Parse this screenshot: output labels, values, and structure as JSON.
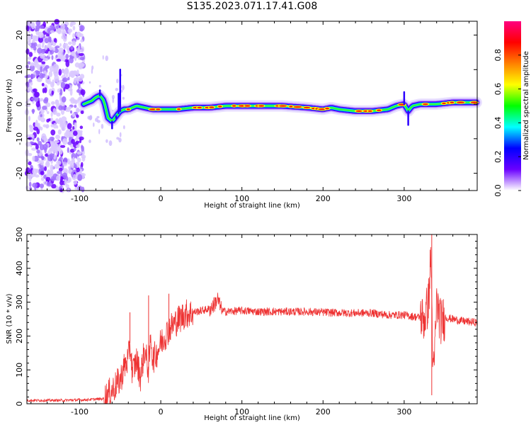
{
  "title": "S135.2023.071.17.41.G08",
  "chart_data": [
    {
      "type": "heatmap",
      "title": "S135.2023.071.17.41.G08",
      "xlabel": "Height of straight line (km)",
      "ylabel": "Frequency (Hz)",
      "xlim": [
        -165,
        390
      ],
      "ylim": [
        -25,
        24
      ],
      "xticks": [
        -100,
        0,
        100,
        200,
        300
      ],
      "yticks": [
        -20,
        -10,
        0,
        10,
        20
      ],
      "colorbar": {
        "label": "Normalized spectral amplitude",
        "range": [
          0,
          1
        ],
        "ticks": [
          "0.0",
          "0.2",
          "0.4",
          "0.6",
          "0.8"
        ],
        "colors": [
          "#ffffff",
          "#6a00ff",
          "#0000ff",
          "#00ffff",
          "#00ff00",
          "#ffff00",
          "#ff8000",
          "#ff0000",
          "#ff0080"
        ]
      },
      "ridge": {
        "name": "peak frequency",
        "x": [
          -95,
          -85,
          -80,
          -75,
          -70,
          -65,
          -60,
          -55,
          -50,
          -45,
          -40,
          -30,
          -20,
          -10,
          0,
          20,
          40,
          60,
          80,
          100,
          120,
          150,
          180,
          200,
          210,
          220,
          240,
          260,
          280,
          290,
          300,
          305,
          310,
          320,
          340,
          360,
          380,
          390
        ],
        "y": [
          0.0,
          1.0,
          2.0,
          2.5,
          1.0,
          -4.0,
          -5.0,
          -3.5,
          -2.0,
          -1.5,
          -1.5,
          -0.5,
          -1.0,
          -1.5,
          -1.5,
          -1.5,
          -1.0,
          -1.0,
          -0.5,
          -0.5,
          -0.5,
          -0.5,
          -1.0,
          -1.5,
          -1.0,
          -1.5,
          -2.0,
          -2.0,
          -1.5,
          -0.5,
          0.0,
          -2.0,
          -0.5,
          0.0,
          0.0,
          0.5,
          0.5,
          0.5
        ]
      },
      "noise_region_x": [
        -165,
        -95
      ]
    },
    {
      "type": "line",
      "xlabel": "Height of straight line (km)",
      "ylabel": "SNR (10 * v/v)",
      "xlim": [
        -165,
        390
      ],
      "ylim": [
        0,
        500
      ],
      "xticks": [
        -100,
        0,
        100,
        200,
        300
      ],
      "yticks": [
        0,
        100,
        200,
        300,
        400,
        500
      ],
      "line_color": "#ee3333",
      "series": [
        {
          "x": [
            -165,
            -150,
            -120,
            -90,
            -70,
            -60,
            -50,
            -45,
            -40,
            -38,
            -35,
            -30,
            -25,
            -20,
            -15,
            -12,
            -10,
            -5,
            0,
            5,
            10,
            20,
            30,
            40,
            50,
            60,
            65,
            70,
            75,
            80,
            100,
            120,
            150,
            180,
            200,
            230,
            260,
            280,
            300,
            310,
            320,
            325,
            330,
            333,
            336,
            340,
            345,
            350,
            360,
            370,
            380,
            390
          ],
          "y": [
            10,
            10,
            10,
            12,
            15,
            40,
            70,
            110,
            130,
            180,
            90,
            130,
            80,
            160,
            100,
            200,
            130,
            150,
            180,
            200,
            220,
            245,
            265,
            270,
            275,
            280,
            290,
            310,
            275,
            272,
            275,
            272,
            272,
            272,
            270,
            268,
            268,
            262,
            262,
            258,
            255,
            250,
            300,
            440,
            60,
            300,
            240,
            255,
            250,
            245,
            242,
            240
          ]
        }
      ],
      "spikes": [
        {
          "x": -38,
          "y": 270
        },
        {
          "x": -15,
          "y": 320
        },
        {
          "x": 10,
          "y": 325
        },
        {
          "x": 334,
          "y": 500
        },
        {
          "x": 334,
          "y": 25
        }
      ]
    }
  ]
}
